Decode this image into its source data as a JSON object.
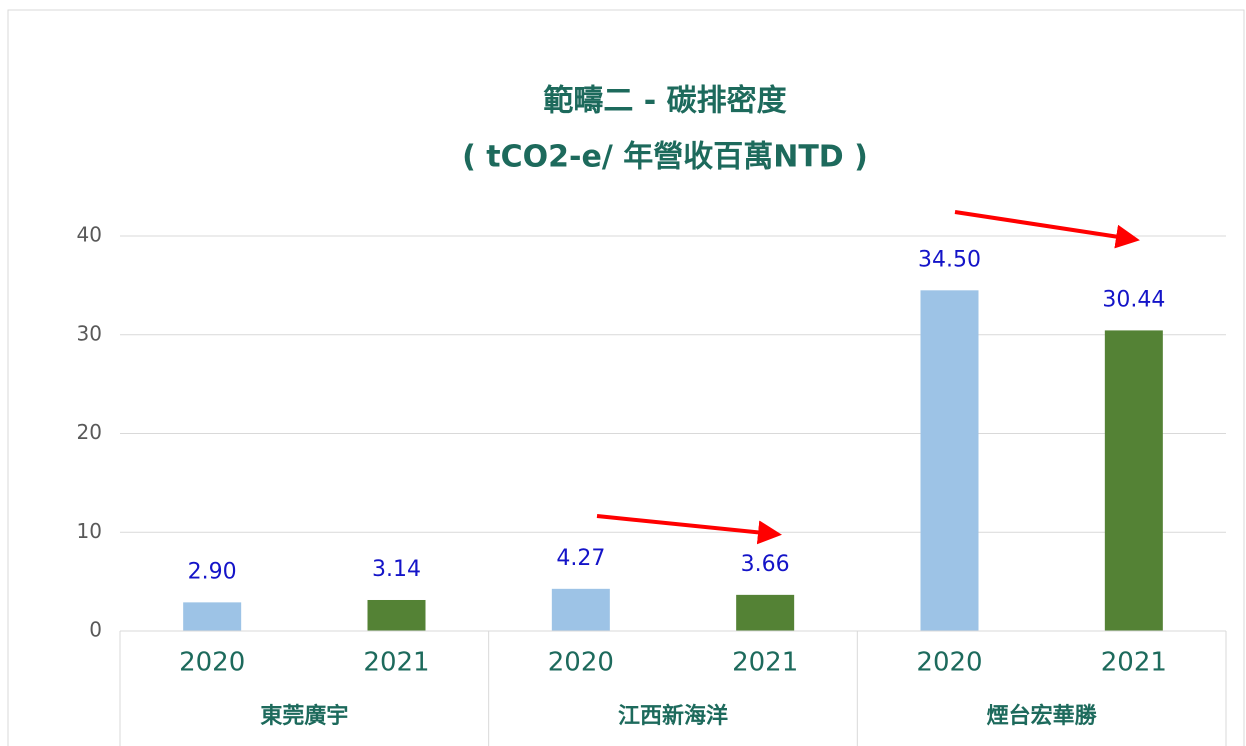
{
  "chart_data": {
    "type": "bar",
    "title": "範疇二 - 碳排密度",
    "subtitle": "( tCO2-e/ 年營收百萬NTD )",
    "groups": [
      "東莞廣宇",
      "江西新海洋",
      "煙台宏華勝"
    ],
    "categories": [
      "2020",
      "2021",
      "2020",
      "2021",
      "2020",
      "2021"
    ],
    "values": [
      2.9,
      3.14,
      4.27,
      3.66,
      34.5,
      30.44
    ],
    "value_labels": [
      "2.90",
      "3.14",
      "4.27",
      "3.66",
      "34.50",
      "30.44"
    ],
    "colors": [
      "#9dc3e6",
      "#548235",
      "#9dc3e6",
      "#548235",
      "#9dc3e6",
      "#548235"
    ],
    "ylim": [
      0,
      40
    ],
    "yticks": [
      0,
      10,
      20,
      30,
      40
    ],
    "grid": true
  }
}
